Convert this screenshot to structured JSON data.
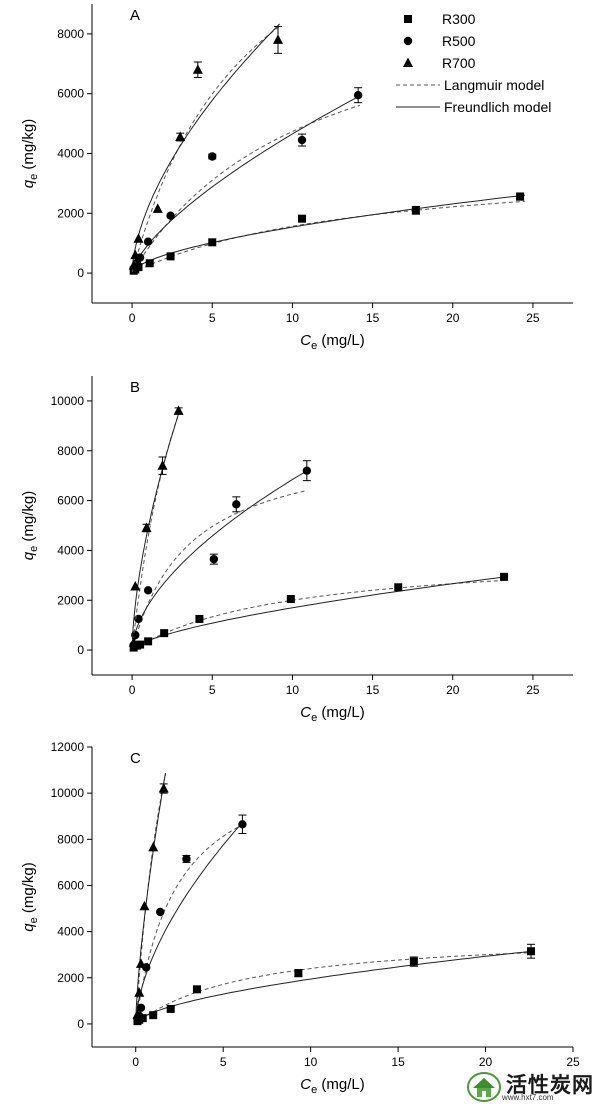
{
  "legend": {
    "entries": [
      {
        "label": "R300",
        "marker": "square"
      },
      {
        "label": "R500",
        "marker": "circle"
      },
      {
        "label": "R700",
        "marker": "triangle"
      },
      {
        "label": "Langmuir model",
        "line": "dashed"
      },
      {
        "label": "Freundlich model",
        "line": "solid"
      }
    ]
  },
  "watermark": {
    "main": "活性炭网",
    "sub": "www.hxt7.com"
  },
  "chart_data": [
    {
      "type": "scatter",
      "panel": "A",
      "xlabel_symbol": "C",
      "xlabel_sub": "e",
      "xlabel_unit": " (mg/L)",
      "ylabel_symbol": "q",
      "ylabel_sub": "e",
      "ylabel_unit": " (mg/kg)",
      "xlim": [
        -2.5,
        27.5
      ],
      "ylim": [
        -1000,
        9000
      ],
      "xticks": [
        0,
        5,
        10,
        15,
        20,
        25
      ],
      "yticks": [
        0,
        2000,
        4000,
        6000,
        8000
      ],
      "legend_position": "top-right",
      "series": [
        {
          "name": "R300",
          "marker": "square",
          "points": [
            [
              0.1,
              80
            ],
            [
              0.2,
              120
            ],
            [
              0.4,
              200
            ],
            [
              1.1,
              330
            ],
            [
              2.4,
              560
            ],
            [
              5.0,
              1030
            ],
            [
              10.6,
              1820
            ],
            [
              17.7,
              2100
            ],
            [
              24.2,
              2560
            ]
          ],
          "errors": [
            0,
            0,
            0,
            0,
            0,
            0,
            60,
            130,
            120
          ],
          "freundlich": {
            "K": 395,
            "n": 0.59,
            "xmax": 24.5
          },
          "langmuir": {
            "Qm": 3800,
            "b": 0.07,
            "xmax": 24.5
          }
        },
        {
          "name": "R500",
          "marker": "circle",
          "points": [
            [
              0.1,
              150
            ],
            [
              0.3,
              340
            ],
            [
              0.5,
              520
            ],
            [
              1.0,
              1050
            ],
            [
              2.4,
              1920
            ],
            [
              5.0,
              3900
            ],
            [
              10.6,
              4450
            ],
            [
              14.1,
              5950
            ]
          ],
          "errors": [
            0,
            0,
            0,
            0,
            0,
            80,
            200,
            250
          ],
          "freundlich": {
            "K": 950,
            "n": 0.69,
            "xmax": 14.2
          },
          "langmuir": {
            "Qm": 10000,
            "b": 0.09,
            "xmax": 14.2
          }
        },
        {
          "name": "R700",
          "marker": "triangle",
          "points": [
            [
              0.1,
              250
            ],
            [
              0.2,
              600
            ],
            [
              0.4,
              1150
            ],
            [
              1.6,
              2150
            ],
            [
              3.0,
              4550
            ],
            [
              4.1,
              6800
            ],
            [
              9.1,
              7800
            ]
          ],
          "errors": [
            0,
            0,
            0,
            0,
            130,
            260,
            450
          ],
          "freundlich": {
            "K": 2200,
            "n": 0.6,
            "xmax": 9.2
          },
          "langmuir": {
            "Qm": 15000,
            "b": 0.133,
            "xmax": 9.2
          }
        }
      ]
    },
    {
      "type": "scatter",
      "panel": "B",
      "xlabel_symbol": "C",
      "xlabel_sub": "e",
      "xlabel_unit": " (mg/L)",
      "ylabel_symbol": "q",
      "ylabel_sub": "e",
      "ylabel_unit": " (mg/kg)",
      "xlim": [
        -2.5,
        27.5
      ],
      "ylim": [
        -1000,
        11000
      ],
      "xticks": [
        0,
        5,
        10,
        15,
        20,
        25
      ],
      "yticks": [
        0,
        2000,
        4000,
        6000,
        8000,
        10000
      ],
      "series": [
        {
          "name": "R300",
          "marker": "square",
          "points": [
            [
              0.1,
              100
            ],
            [
              0.3,
              180
            ],
            [
              0.5,
              220
            ],
            [
              1.0,
              350
            ],
            [
              2.0,
              680
            ],
            [
              4.2,
              1250
            ],
            [
              9.9,
              2050
            ],
            [
              16.6,
              2520
            ],
            [
              23.2,
              2940
            ]
          ],
          "errors": [
            0,
            0,
            0,
            0,
            0,
            0,
            0,
            0,
            0
          ],
          "freundlich": {
            "K": 380,
            "n": 0.65,
            "xmax": 23.3
          },
          "langmuir": {
            "Qm": 4000,
            "b": 0.1,
            "xmax": 23.3
          }
        },
        {
          "name": "R500",
          "marker": "circle",
          "points": [
            [
              0.1,
              200
            ],
            [
              0.2,
              600
            ],
            [
              0.4,
              1250
            ],
            [
              1.0,
              2400
            ],
            [
              5.1,
              3650
            ],
            [
              6.5,
              5850
            ],
            [
              10.9,
              7200
            ]
          ],
          "errors": [
            0,
            0,
            0,
            0,
            200,
            300,
            400
          ],
          "freundlich": {
            "K": 1800,
            "n": 0.58,
            "xmax": 10.9
          },
          "langmuir": {
            "Qm": 8500,
            "b": 0.28,
            "xmax": 10.9
          }
        },
        {
          "name": "R700",
          "marker": "triangle",
          "points": [
            [
              0.1,
              300
            ],
            [
              0.2,
              2550
            ],
            [
              0.9,
              4900
            ],
            [
              1.9,
              7400
            ],
            [
              2.9,
              9600
            ]
          ],
          "errors": [
            0,
            0,
            150,
            350,
            120
          ],
          "freundlich": {
            "K": 4900,
            "n": 0.62,
            "xmax": 2.95
          },
          "langmuir": {
            "Qm": 22000,
            "b": 0.26,
            "xmax": 2.95
          }
        }
      ]
    },
    {
      "type": "scatter",
      "panel": "C",
      "xlabel_symbol": "C",
      "xlabel_sub": "e",
      "xlabel_unit": " (mg/L)",
      "ylabel_symbol": "q",
      "ylabel_sub": "e",
      "ylabel_unit": " (mg/kg)",
      "xlim": [
        -2.5,
        25
      ],
      "ylim": [
        -1000,
        12000
      ],
      "xticks": [
        0,
        5,
        10,
        15,
        20,
        25
      ],
      "yticks": [
        0,
        2000,
        4000,
        6000,
        8000,
        10000,
        12000
      ],
      "series": [
        {
          "name": "R300",
          "marker": "square",
          "points": [
            [
              0.1,
              120
            ],
            [
              0.2,
              180
            ],
            [
              0.4,
              250
            ],
            [
              1.0,
              380
            ],
            [
              2.0,
              650
            ],
            [
              3.5,
              1500
            ],
            [
              9.3,
              2200
            ],
            [
              15.9,
              2700
            ],
            [
              22.6,
              3150
            ]
          ],
          "errors": [
            0,
            0,
            0,
            0,
            0,
            0,
            150,
            200,
            300
          ],
          "freundlich": {
            "K": 500,
            "n": 0.59,
            "xmax": 22.6
          },
          "langmuir": {
            "Qm": 4000,
            "b": 0.15,
            "xmax": 22.6
          }
        },
        {
          "name": "R500",
          "marker": "circle",
          "points": [
            [
              0.1,
              200
            ],
            [
              0.2,
              350
            ],
            [
              0.3,
              700
            ],
            [
              0.6,
              2450
            ],
            [
              1.4,
              4850
            ],
            [
              2.9,
              7150
            ],
            [
              6.1,
              8650
            ]
          ],
          "errors": [
            0,
            0,
            0,
            0,
            0,
            150,
            400
          ],
          "freundlich": {
            "K": 2950,
            "n": 0.6,
            "xmax": 6.1
          },
          "langmuir": {
            "Qm": 12000,
            "b": 0.42,
            "xmax": 6.1
          }
        },
        {
          "name": "R700",
          "marker": "triangle",
          "points": [
            [
              0.1,
              400
            ],
            [
              0.2,
              1350
            ],
            [
              0.3,
              2600
            ],
            [
              0.5,
              5100
            ],
            [
              1.0,
              7650
            ],
            [
              1.6,
              10200
            ]
          ],
          "errors": [
            0,
            0,
            0,
            0,
            0,
            200
          ],
          "freundlich": {
            "K": 7500,
            "n": 0.7,
            "xmax": 1.7
          },
          "langmuir": {
            "Qm": 26000,
            "b": 0.42,
            "xmax": 1.7
          }
        }
      ]
    }
  ]
}
